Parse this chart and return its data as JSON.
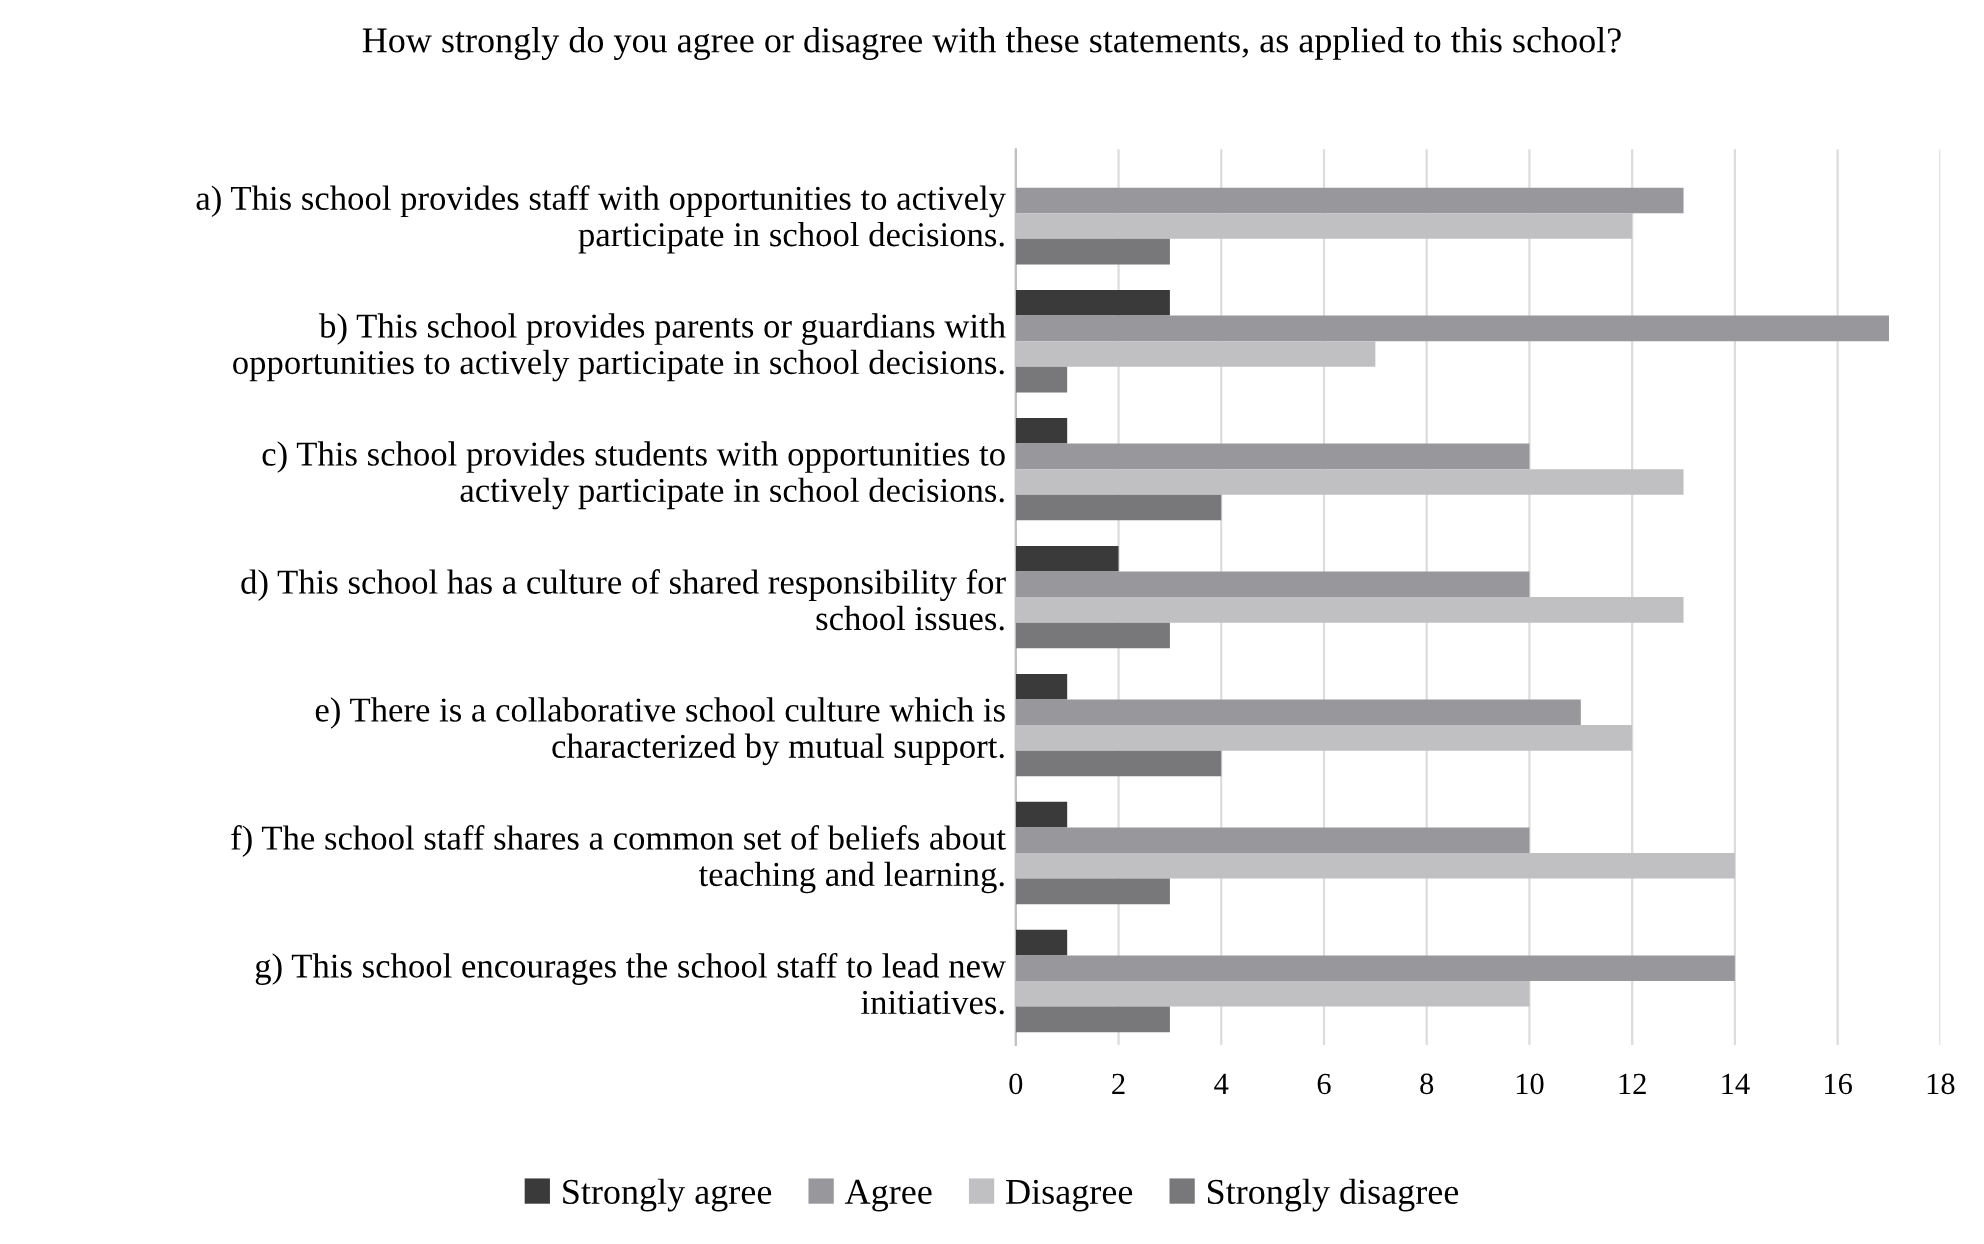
{
  "chart_data": {
    "type": "bar",
    "orientation": "horizontal",
    "title": "How strongly do you agree or disagree with these statements, as applied to this school?",
    "categories": [
      "a) This school provides staff with opportunities to actively participate in school decisions.",
      "b) This school provides parents or guardians with opportunities to actively participate in school decisions.",
      "c) This school provides students with opportunities to actively participate in school decisions.",
      "d) This school has a culture of shared responsibility for school issues.",
      "e) There is a collaborative school culture which is characterized by mutual support.",
      "f) The school staff shares a common set of beliefs about teaching and learning.",
      "g) This school encourages the school staff to lead new initiatives."
    ],
    "series": [
      {
        "name": "Strongly agree",
        "color": "#3a3a3a",
        "values": [
          0,
          3,
          1,
          2,
          1,
          1,
          1
        ]
      },
      {
        "name": "Agree",
        "color": "#98989c",
        "values": [
          13,
          17,
          10,
          10,
          11,
          10,
          14
        ]
      },
      {
        "name": "Disagree",
        "color": "#c0c0c3",
        "values": [
          12,
          7,
          13,
          13,
          12,
          14,
          10
        ]
      },
      {
        "name": "Strongly disagree",
        "color": "#78787a",
        "values": [
          3,
          1,
          4,
          3,
          4,
          3,
          3
        ]
      }
    ],
    "xlim": [
      0,
      18
    ],
    "xticks": [
      0,
      2,
      4,
      6,
      8,
      10,
      12,
      14,
      16,
      18
    ],
    "grid": "x",
    "legend": "bottom"
  }
}
